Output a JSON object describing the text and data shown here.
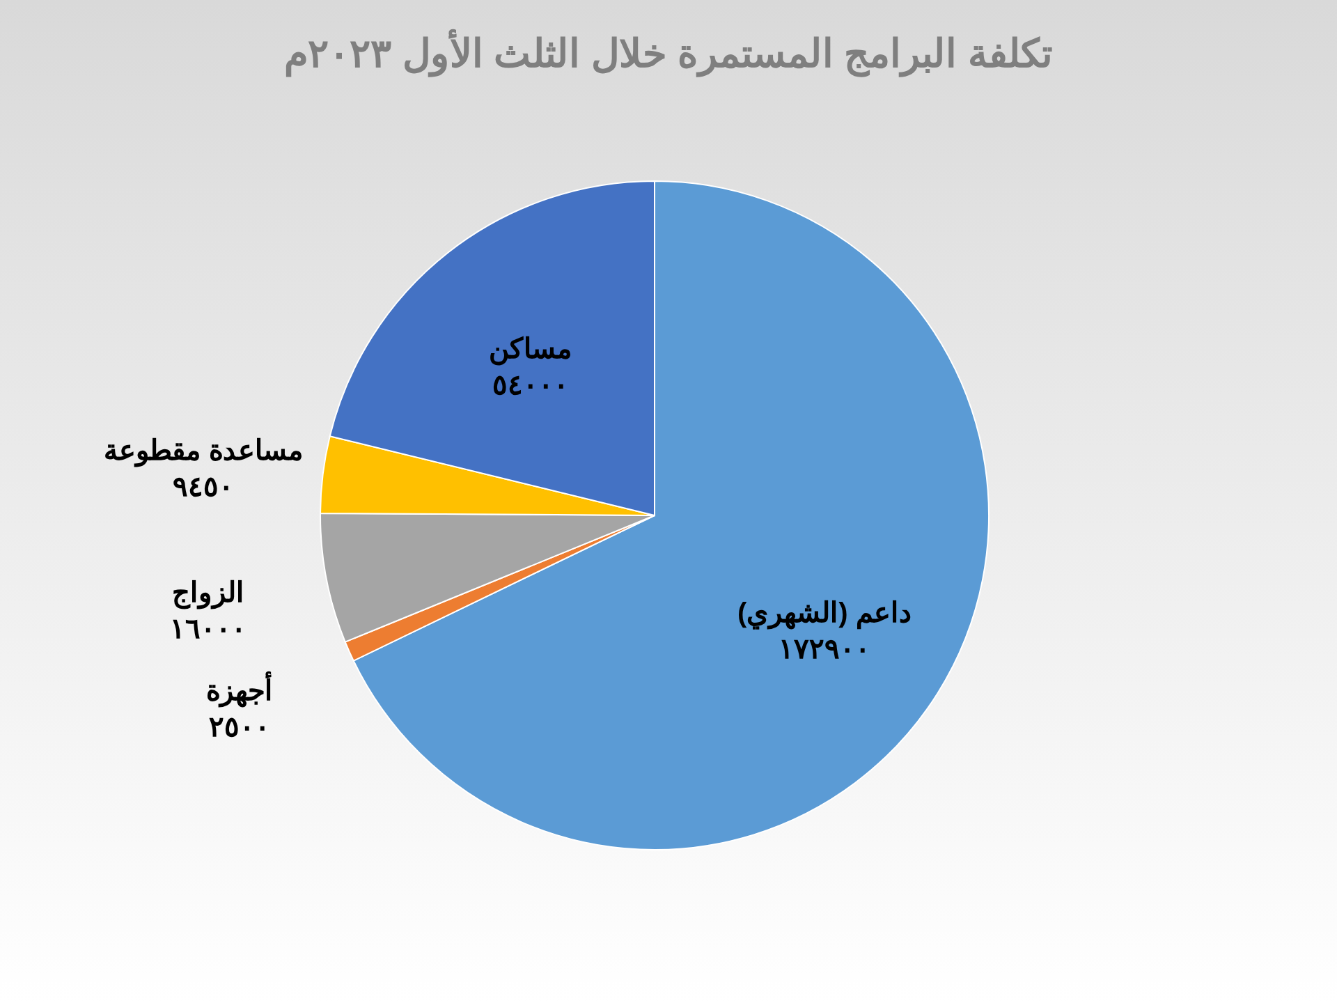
{
  "chart_data": {
    "type": "pie",
    "title": "تكلفة البرامج المستمرة خلال الثلث الأول ٢٠٢٣م",
    "categories": [
      "داعم (الشهري)",
      "أجهزة",
      "الزواج",
      "مساعدة مقطوعة",
      "مساكن"
    ],
    "values": [
      172900,
      2500,
      16000,
      9450,
      54000
    ],
    "colors": [
      "#5b9bd5",
      "#ed7d31",
      "#a5a5a5",
      "#ffc000",
      "#4472c4"
    ],
    "value_labels": [
      "١٧٢٩٠٠",
      "٢٥٠٠",
      "١٦٠٠٠",
      "٩٤٥٠",
      "٥٤٠٠٠"
    ]
  }
}
